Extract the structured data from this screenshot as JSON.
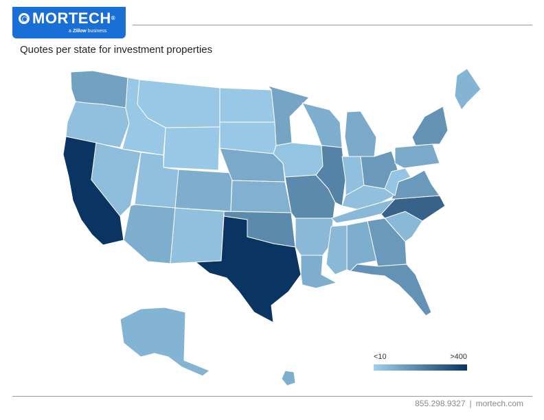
{
  "brand": {
    "name": "MORTECH",
    "registered": "®",
    "tagline_prefix": "a",
    "tagline_company": "Zillow",
    "tagline_suffix": "business"
  },
  "title": "Quotes per state for investment properties",
  "legend": {
    "min_label": "<10",
    "max_label": ">400",
    "color_low": "#9fd0ec",
    "color_high": "#0a3461"
  },
  "footer": {
    "phone": "855.298.9327",
    "separator": "|",
    "website": "mortech.com"
  },
  "map_data": {
    "type": "choropleth",
    "region": "United States",
    "states": [
      {
        "code": "WA",
        "level": 0.3
      },
      {
        "code": "OR",
        "level": 0.1
      },
      {
        "code": "CA",
        "level": 1.0
      },
      {
        "code": "ID",
        "level": 0.05
      },
      {
        "code": "NV",
        "level": 0.12
      },
      {
        "code": "MT",
        "level": 0.05
      },
      {
        "code": "WY",
        "level": 0.05
      },
      {
        "code": "UT",
        "level": 0.1
      },
      {
        "code": "AZ",
        "level": 0.22
      },
      {
        "code": "CO",
        "level": 0.22
      },
      {
        "code": "NM",
        "level": 0.1
      },
      {
        "code": "ND",
        "level": 0.05
      },
      {
        "code": "SD",
        "level": 0.05
      },
      {
        "code": "NE",
        "level": 0.25
      },
      {
        "code": "KS",
        "level": 0.2
      },
      {
        "code": "OK",
        "level": 0.45
      },
      {
        "code": "TX",
        "level": 1.0
      },
      {
        "code": "MN",
        "level": 0.28
      },
      {
        "code": "IA",
        "level": 0.08
      },
      {
        "code": "MO",
        "level": 0.45
      },
      {
        "code": "AR",
        "level": 0.15
      },
      {
        "code": "LA",
        "level": 0.22
      },
      {
        "code": "WI",
        "level": 0.22
      },
      {
        "code": "IL",
        "level": 0.5
      },
      {
        "code": "MI",
        "level": 0.25
      },
      {
        "code": "IN",
        "level": 0.1
      },
      {
        "code": "OH",
        "level": 0.35
      },
      {
        "code": "KY",
        "level": 0.1
      },
      {
        "code": "TN",
        "level": 0.15
      },
      {
        "code": "MS",
        "level": 0.15
      },
      {
        "code": "AL",
        "level": 0.22
      },
      {
        "code": "GA",
        "level": 0.35
      },
      {
        "code": "FL",
        "level": 0.4
      },
      {
        "code": "SC",
        "level": 0.15
      },
      {
        "code": "NC",
        "level": 0.7
      },
      {
        "code": "VA",
        "level": 0.35
      },
      {
        "code": "WV",
        "level": 0.08
      },
      {
        "code": "PA",
        "level": 0.25
      },
      {
        "code": "NY",
        "level": 0.4
      },
      {
        "code": "ME",
        "level": 0.18
      },
      {
        "code": "AK",
        "level": 0.18
      },
      {
        "code": "HI",
        "level": 0.22
      }
    ]
  }
}
